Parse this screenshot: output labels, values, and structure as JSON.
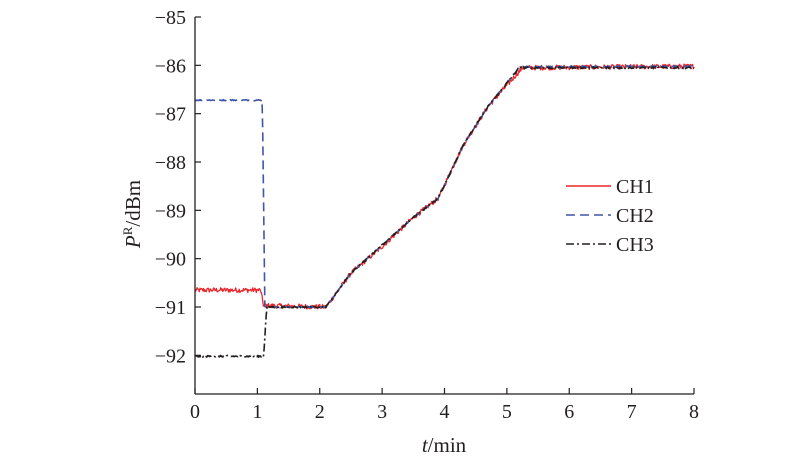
{
  "chart_data": {
    "type": "line",
    "xlabel_var": "t",
    "xlabel_unit": "/min",
    "ylabel_var": "P",
    "ylabel_sup": "R",
    "ylabel_unit": "/dBm",
    "xlim": [
      0,
      8
    ],
    "ylim": [
      -92.8,
      -85
    ],
    "x_ticks": [
      0,
      1,
      2,
      3,
      4,
      5,
      6,
      7,
      8
    ],
    "y_ticks": [
      -85,
      -86,
      -87,
      -88,
      -89,
      -90,
      -91,
      -92
    ],
    "x_tick_labels": [
      "0",
      "1",
      "2",
      "3",
      "4",
      "5",
      "6",
      "7",
      "8"
    ],
    "y_tick_labels": [
      "−85",
      "−86",
      "−87",
      "−88",
      "−89",
      "−90",
      "−91",
      "−92"
    ],
    "grid": false,
    "legend_position": "right-middle",
    "series": [
      {
        "name": "CH1",
        "color": "#e8262b",
        "line_style": "solid",
        "noise": 0.05,
        "points": [
          [
            0,
            -90.65
          ],
          [
            1.05,
            -90.65
          ],
          [
            1.1,
            -90.97
          ],
          [
            2.1,
            -91.0
          ],
          [
            2.5,
            -90.3
          ],
          [
            3.0,
            -89.75
          ],
          [
            3.5,
            -89.15
          ],
          [
            3.9,
            -88.75
          ],
          [
            4.3,
            -87.65
          ],
          [
            4.7,
            -86.85
          ],
          [
            5.25,
            -86.05
          ],
          [
            8.0,
            -86.02
          ]
        ]
      },
      {
        "name": "CH2",
        "color": "#3e57a8",
        "line_style": "dashed",
        "noise": 0.012,
        "points": [
          [
            0,
            -86.72
          ],
          [
            1.08,
            -86.72
          ],
          [
            1.12,
            -91.0
          ],
          [
            2.1,
            -91.0
          ],
          [
            2.5,
            -90.3
          ],
          [
            3.0,
            -89.72
          ],
          [
            3.5,
            -89.15
          ],
          [
            3.9,
            -88.75
          ],
          [
            4.3,
            -87.65
          ],
          [
            4.7,
            -86.85
          ],
          [
            5.2,
            -86.03
          ],
          [
            8.0,
            -86.02
          ]
        ]
      },
      {
        "name": "CH3",
        "color": "#231f20",
        "line_style": "dashdot",
        "noise": 0.018,
        "points": [
          [
            0,
            -92.02
          ],
          [
            1.1,
            -92.02
          ],
          [
            1.15,
            -91.0
          ],
          [
            2.1,
            -91.0
          ],
          [
            2.5,
            -90.3
          ],
          [
            3.0,
            -89.72
          ],
          [
            3.5,
            -89.15
          ],
          [
            3.9,
            -88.75
          ],
          [
            4.3,
            -87.65
          ],
          [
            4.7,
            -86.85
          ],
          [
            5.2,
            -86.05
          ],
          [
            8.0,
            -86.05
          ]
        ]
      }
    ]
  }
}
